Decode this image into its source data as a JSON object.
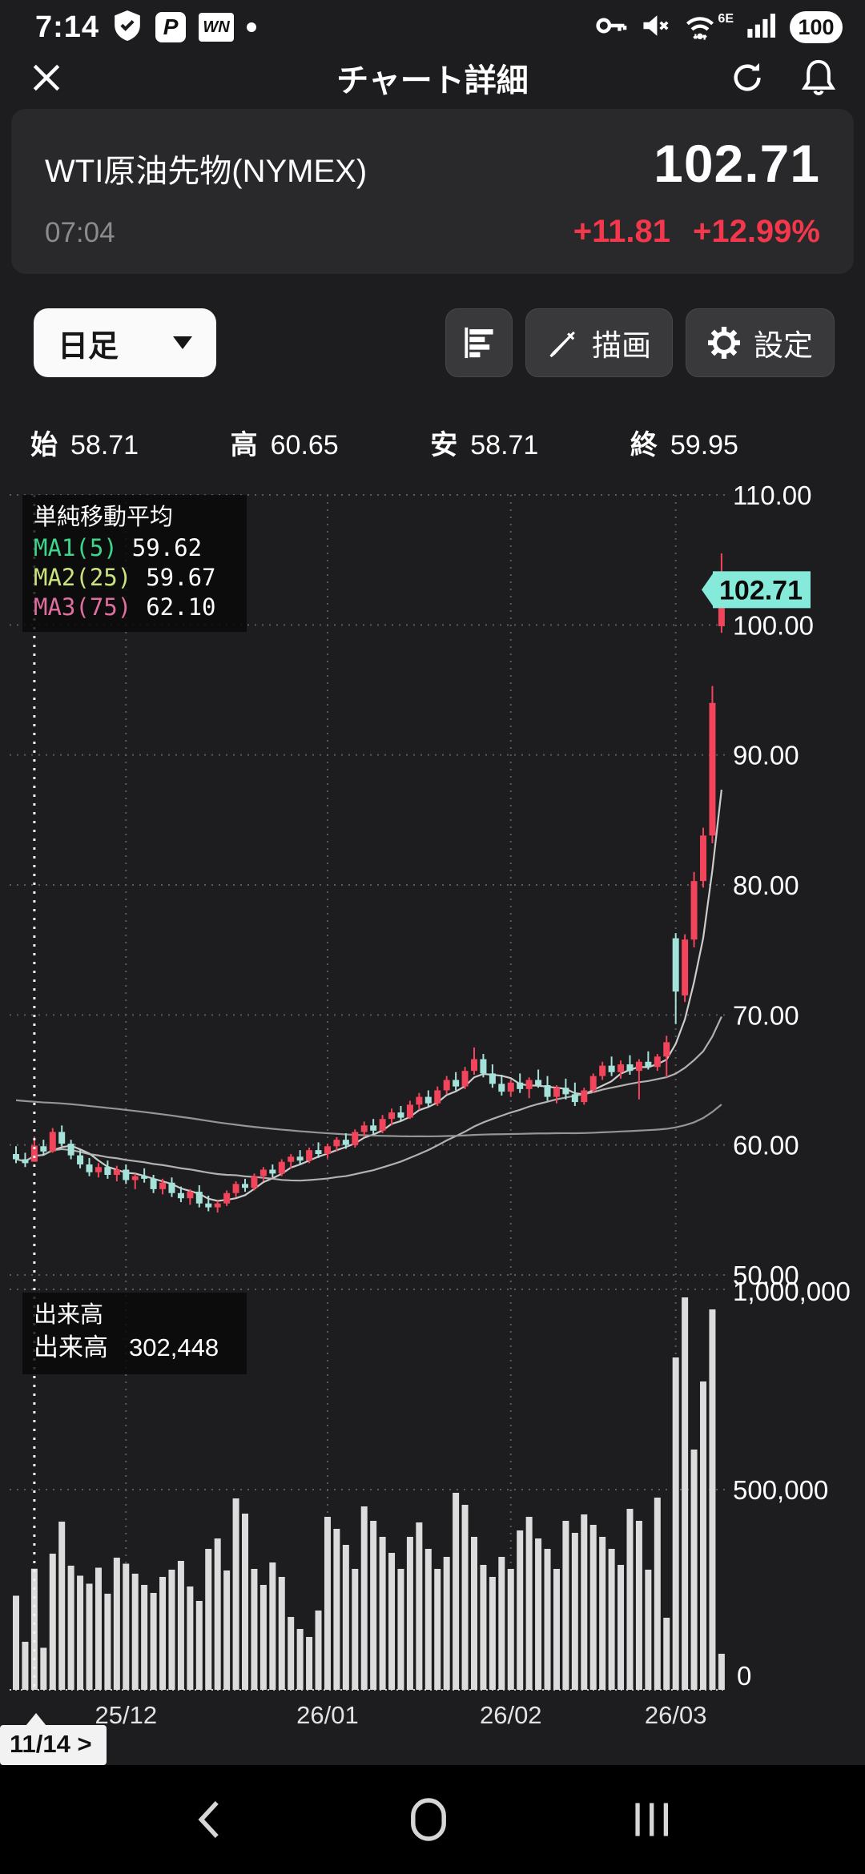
{
  "status_bar": {
    "time": "7:14",
    "p_badge": "P",
    "wn_badge": "WN",
    "wifi_label": "6E",
    "battery": "100"
  },
  "app_bar": {
    "title": "チャート詳細"
  },
  "instrument": {
    "name": "WTI原油先物(NYMEX)",
    "time": "07:04",
    "price": "102.71",
    "change": "+11.81",
    "change_pct": "+12.99%",
    "change_color": "#f5374b"
  },
  "controls": {
    "timeframe": "日足",
    "draw": "描画",
    "settings": "設定"
  },
  "ohlc": {
    "open_label": "始",
    "open": "58.71",
    "high_label": "高",
    "high": "60.65",
    "low_label": "安",
    "low": "58.71",
    "close_label": "終",
    "close": "59.95"
  },
  "nav_tooltip": "11/14 >",
  "chart_data": {
    "type": "candlestick+volume",
    "instrument": "WTI原油先物(NYMEX)",
    "timeframe": "daily",
    "up_color": "#f2445a",
    "down_color": "#a5e3da",
    "volume_color": "#dcdcdc",
    "price_axis": {
      "min": 50,
      "max": 110,
      "tick_labels": [
        "110.00",
        "100.00",
        "90.00",
        "80.00",
        "70.00",
        "60.00",
        "50.00"
      ]
    },
    "volume_axis": {
      "max": 1000000,
      "tick_labels": [
        "1,000,000",
        "500,000",
        "0"
      ]
    },
    "x_ticks": [
      {
        "label": "25/12",
        "index": 12
      },
      {
        "label": "26/01",
        "index": 34
      },
      {
        "label": "26/02",
        "index": 54
      },
      {
        "label": "26/03",
        "index": 72
      }
    ],
    "crosshair_index": 2,
    "selected_date": "11/14",
    "price_tag": {
      "value": "102.71",
      "color": "#85ead9"
    },
    "ma": {
      "title": "単純移動平均",
      "prehistory": 63.5,
      "line_colors": [
        "#d6d6d6",
        "#b9b9b9",
        "#9c9c9c"
      ],
      "items": [
        {
          "name": "MA1(5)",
          "period": 5,
          "value": "59.62",
          "color": "#3dd68c"
        },
        {
          "name": "MA2(25)",
          "period": 25,
          "value": "59.67",
          "color": "#cbe37e"
        },
        {
          "name": "MA3(75)",
          "period": 75,
          "value": "62.10",
          "color": "#e06e9f"
        }
      ]
    },
    "volume_legend": {
      "pane_title": "出来高",
      "series_label": "出来高",
      "value": "302,448"
    },
    "candles": [
      [
        59.3,
        59.9,
        58.6,
        58.9
      ],
      [
        58.9,
        59.4,
        58.3,
        58.6
      ],
      [
        58.71,
        60.65,
        58.71,
        59.95
      ],
      [
        59.9,
        60.4,
        59.2,
        59.5
      ],
      [
        59.5,
        61.3,
        59.4,
        61.0
      ],
      [
        61.0,
        61.5,
        59.9,
        60.1
      ],
      [
        60.1,
        60.4,
        58.9,
        59.2
      ],
      [
        59.2,
        59.6,
        58.2,
        58.5
      ],
      [
        58.5,
        59.0,
        57.6,
        57.9
      ],
      [
        57.9,
        58.6,
        57.5,
        58.3
      ],
      [
        58.3,
        58.8,
        57.4,
        57.7
      ],
      [
        57.7,
        58.4,
        57.2,
        58.1
      ],
      [
        58.1,
        58.5,
        57.0,
        57.3
      ],
      [
        57.3,
        57.8,
        56.6,
        57.6
      ],
      [
        57.6,
        58.2,
        57.1,
        57.4
      ],
      [
        57.4,
        57.7,
        56.3,
        56.6
      ],
      [
        56.6,
        57.4,
        56.2,
        57.1
      ],
      [
        57.1,
        57.5,
        56.0,
        56.3
      ],
      [
        56.3,
        56.8,
        55.6,
        55.9
      ],
      [
        55.9,
        56.6,
        55.4,
        56.4
      ],
      [
        56.4,
        56.9,
        55.2,
        55.5
      ],
      [
        55.5,
        56.1,
        54.9,
        55.2
      ],
      [
        55.2,
        55.7,
        54.8,
        55.5
      ],
      [
        55.5,
        56.5,
        55.3,
        56.3
      ],
      [
        56.3,
        57.2,
        56.0,
        57.0
      ],
      [
        57.0,
        57.4,
        56.4,
        56.7
      ],
      [
        56.7,
        57.8,
        56.5,
        57.6
      ],
      [
        57.6,
        58.3,
        57.2,
        58.1
      ],
      [
        58.1,
        58.5,
        57.5,
        57.8
      ],
      [
        57.8,
        58.9,
        57.6,
        58.7
      ],
      [
        58.7,
        59.3,
        58.2,
        59.1
      ],
      [
        59.1,
        59.6,
        58.5,
        58.8
      ],
      [
        58.8,
        59.8,
        58.6,
        59.6
      ],
      [
        59.6,
        60.2,
        59.0,
        59.3
      ],
      [
        59.3,
        60.1,
        59.0,
        59.9
      ],
      [
        59.9,
        60.6,
        59.5,
        60.4
      ],
      [
        60.4,
        60.9,
        59.7,
        60.0
      ],
      [
        60.0,
        61.2,
        59.8,
        61.0
      ],
      [
        61.0,
        61.8,
        60.6,
        61.5
      ],
      [
        61.5,
        62.0,
        60.8,
        61.1
      ],
      [
        61.1,
        62.3,
        60.9,
        62.0
      ],
      [
        62.0,
        62.8,
        61.5,
        62.5
      ],
      [
        62.5,
        63.0,
        61.8,
        62.1
      ],
      [
        62.1,
        63.4,
        62.0,
        63.1
      ],
      [
        63.1,
        64.0,
        62.7,
        63.7
      ],
      [
        63.7,
        64.2,
        62.9,
        63.2
      ],
      [
        63.2,
        64.5,
        63.0,
        64.2
      ],
      [
        64.2,
        65.3,
        63.9,
        65.0
      ],
      [
        65.0,
        65.6,
        64.2,
        64.5
      ],
      [
        64.5,
        66.0,
        64.3,
        65.7
      ],
      [
        65.7,
        67.5,
        65.4,
        66.6
      ],
      [
        66.6,
        67.0,
        65.2,
        65.5
      ],
      [
        65.5,
        66.2,
        64.4,
        64.7
      ],
      [
        64.7,
        65.4,
        63.8,
        64.1
      ],
      [
        64.1,
        65.0,
        63.7,
        64.8
      ],
      [
        64.8,
        65.5,
        64.0,
        64.3
      ],
      [
        64.3,
        65.2,
        63.6,
        65.0
      ],
      [
        65.0,
        65.8,
        64.4,
        64.6
      ],
      [
        64.6,
        65.3,
        63.4,
        63.7
      ],
      [
        63.7,
        64.6,
        63.2,
        64.4
      ],
      [
        64.4,
        65.1,
        63.5,
        63.9
      ],
      [
        63.9,
        64.8,
        63.0,
        63.3
      ],
      [
        63.3,
        64.4,
        63.1,
        64.2
      ],
      [
        64.2,
        65.5,
        64.0,
        65.3
      ],
      [
        65.3,
        66.4,
        65.0,
        66.1
      ],
      [
        66.1,
        66.8,
        65.3,
        65.6
      ],
      [
        65.6,
        66.5,
        65.1,
        66.2
      ],
      [
        66.2,
        66.9,
        65.4,
        65.7
      ],
      [
        65.7,
        66.6,
        63.5,
        66.4
      ],
      [
        66.4,
        67.2,
        65.8,
        66.0
      ],
      [
        66.0,
        67.0,
        65.7,
        66.8
      ],
      [
        66.8,
        68.4,
        65.2,
        67.9
      ],
      [
        75.9,
        76.3,
        69.3,
        71.8
      ],
      [
        71.5,
        76.2,
        71.0,
        75.8
      ],
      [
        75.8,
        81.0,
        75.2,
        80.3
      ],
      [
        80.3,
        84.4,
        79.8,
        83.8
      ],
      [
        83.8,
        95.3,
        83.2,
        94.0
      ],
      [
        99.9,
        105.5,
        99.4,
        102.71
      ]
    ],
    "volumes": [
      235000,
      120000,
      302448,
      105000,
      340000,
      420000,
      310000,
      285000,
      265000,
      305000,
      240000,
      330000,
      315000,
      290000,
      262000,
      242000,
      282000,
      300000,
      322000,
      258000,
      222000,
      352000,
      378000,
      298000,
      478000,
      440000,
      302000,
      262000,
      318000,
      282000,
      182000,
      152000,
      132000,
      198000,
      432000,
      402000,
      362000,
      302000,
      458000,
      422000,
      382000,
      342000,
      302000,
      382000,
      418000,
      352000,
      302000,
      332000,
      492000,
      462000,
      382000,
      312000,
      282000,
      332000,
      302000,
      398000,
      432000,
      378000,
      352000,
      302000,
      422000,
      392000,
      438000,
      412000,
      382000,
      352000,
      312000,
      452000,
      422000,
      300000,
      480000,
      180000,
      830000,
      980000,
      600000,
      770000,
      950000,
      90000
    ]
  }
}
